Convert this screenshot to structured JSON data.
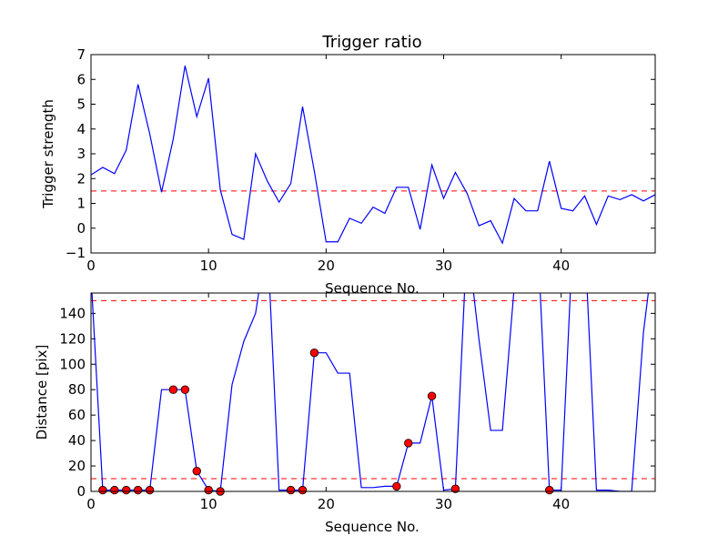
{
  "colors": {
    "line": "#0000ff",
    "threshold": "#ff0000",
    "marker": "#ff0000"
  },
  "chart_data": [
    {
      "type": "line",
      "title": "Trigger ratio",
      "xlabel": "Sequence No.",
      "ylabel": "Trigger strength",
      "xlim": [
        0,
        48
      ],
      "ylim": [
        -1,
        7
      ],
      "xticks": [
        "0",
        "10",
        "20",
        "30",
        "40"
      ],
      "yticks": [
        "−1",
        "0",
        "1",
        "2",
        "3",
        "4",
        "5",
        "6",
        "7"
      ],
      "threshold": 1.5,
      "x": [
        0,
        1,
        2,
        3,
        4,
        5,
        6,
        7,
        8,
        9,
        10,
        11,
        12,
        13,
        14,
        15,
        16,
        17,
        18,
        19,
        20,
        21,
        22,
        23,
        24,
        25,
        26,
        27,
        28,
        29,
        30,
        31,
        32,
        33,
        34,
        35,
        36,
        37,
        38,
        39,
        40,
        41,
        42,
        43,
        44,
        45,
        46,
        47,
        48
      ],
      "values": [
        2.15,
        2.45,
        2.2,
        3.15,
        5.8,
        3.8,
        1.45,
        3.6,
        6.55,
        4.5,
        6.05,
        1.55,
        -0.25,
        -0.45,
        3.0,
        1.9,
        1.05,
        1.8,
        4.9,
        2.3,
        -0.55,
        -0.55,
        0.4,
        0.2,
        0.85,
        0.6,
        1.65,
        1.65,
        -0.05,
        2.55,
        1.2,
        2.25,
        1.4,
        0.1,
        0.3,
        -0.6,
        1.2,
        0.7,
        0.7,
        2.7,
        0.8,
        0.7,
        1.3,
        0.15,
        1.3,
        1.15,
        1.35,
        1.1,
        1.35
      ]
    },
    {
      "type": "line",
      "title": "",
      "xlabel": "Sequence No.",
      "ylabel": "Distance [pix]",
      "xlim": [
        0,
        48
      ],
      "ylim": [
        0,
        156
      ],
      "xticks": [
        "0",
        "10",
        "20",
        "30",
        "40"
      ],
      "yticks": [
        "0",
        "20",
        "40",
        "60",
        "80",
        "100",
        "120",
        "140"
      ],
      "thresholds": [
        10,
        150
      ],
      "x": [
        0,
        1,
        2,
        3,
        4,
        5,
        6,
        7,
        8,
        9,
        10,
        11,
        12,
        13,
        14,
        15,
        16,
        17,
        18,
        19,
        20,
        21,
        22,
        23,
        24,
        25,
        26,
        27,
        28,
        29,
        30,
        31,
        32,
        33,
        34,
        35,
        36,
        37,
        38,
        39,
        40,
        41,
        42,
        43,
        44,
        45,
        46,
        47,
        48
      ],
      "values": [
        170,
        1,
        1,
        1,
        1,
        1,
        80,
        80,
        80,
        16,
        1,
        0,
        84,
        118,
        140,
        200,
        1,
        1,
        1,
        109,
        109,
        93,
        93,
        3,
        3,
        4,
        4,
        38,
        38,
        75,
        1,
        2,
        200,
        120,
        48,
        48,
        160,
        200,
        200,
        1,
        1,
        200,
        200,
        1,
        1,
        0,
        0,
        125,
        200
      ],
      "markers": {
        "x": [
          1,
          2,
          3,
          4,
          5,
          7,
          8,
          9,
          10,
          11,
          17,
          18,
          19,
          26,
          27,
          29,
          31,
          39
        ],
        "values": [
          1,
          1,
          1,
          1,
          1,
          80,
          80,
          16,
          1,
          0,
          1,
          1,
          109,
          4,
          38,
          75,
          2,
          1
        ]
      }
    }
  ]
}
